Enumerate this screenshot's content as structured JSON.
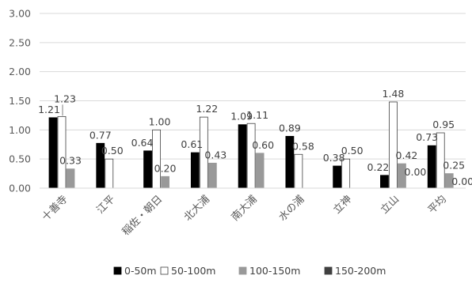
{
  "chart_data": {
    "type": "bar",
    "title": "",
    "xlabel": "",
    "ylabel": "",
    "ylim": [
      0,
      3.0
    ],
    "yticks": [
      "0.00",
      "0.50",
      "1.00",
      "1.50",
      "2.00",
      "2.50",
      "3.00"
    ],
    "grid": true,
    "legend_position": "bottom",
    "categories": [
      "十善寺",
      "江平",
      "稲佐・朝日",
      "北大浦",
      "南大浦",
      "水の浦",
      "立神",
      "立山",
      "平均"
    ],
    "series": [
      {
        "name": "0-50m",
        "color": "#000000",
        "values": [
          1.21,
          0.77,
          0.64,
          0.61,
          1.09,
          0.89,
          0.38,
          0.22,
          0.73
        ],
        "labels": [
          "1.21",
          "0.77",
          "0.64",
          "0.61",
          "1.09",
          "0.89",
          "0.38",
          "0.22",
          "0.73"
        ]
      },
      {
        "name": "50-100m",
        "color": "#ffffff",
        "values": [
          1.23,
          0.5,
          1.0,
          1.22,
          1.11,
          0.58,
          0.5,
          1.48,
          0.95
        ],
        "labels": [
          "1.23",
          "0.50",
          "1.00",
          "1.22",
          "1.11",
          "0.58",
          "0.50",
          "1.48",
          "0.95"
        ]
      },
      {
        "name": "100-150m",
        "color": "#999999",
        "values": [
          0.33,
          null,
          0.2,
          0.43,
          0.6,
          null,
          null,
          0.42,
          0.25
        ],
        "labels": [
          "0.33",
          null,
          "0.20",
          "0.43",
          "0.60",
          null,
          null,
          "0.42",
          "0.25"
        ]
      },
      {
        "name": "150-200m",
        "color": "#404040",
        "values": [
          null,
          null,
          null,
          null,
          null,
          null,
          null,
          0.0,
          0.0
        ],
        "labels": [
          null,
          null,
          null,
          null,
          null,
          null,
          null,
          "0.00",
          "0.00"
        ]
      }
    ]
  }
}
